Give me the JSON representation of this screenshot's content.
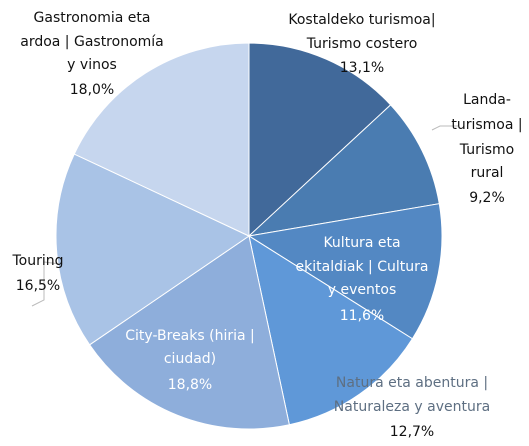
{
  "chart_data": {
    "type": "pie",
    "categories": [
      [
        "Kostaldeko turismoa|",
        "Turismo costero"
      ],
      [
        "Landa-",
        "turismoa |",
        "Turismo",
        "rural"
      ],
      [
        "Kultura eta",
        "ekitaldiak | Cultura",
        "y eventos"
      ],
      [
        "Natura eta abentura |",
        "Naturaleza y aventura"
      ],
      [
        "City-Breaks (hiria |",
        "ciudad)"
      ],
      [
        "Touring"
      ],
      [
        "Gastronomia eta",
        "ardoa | Gastronomía",
        "y vinos"
      ]
    ],
    "values": [
      13.1,
      9.2,
      11.6,
      12.7,
      18.8,
      16.5,
      18.0
    ],
    "value_labels": [
      "13,1%",
      "9,2%",
      "11,6%",
      "12,7%",
      "18,8%",
      "16,5%",
      "18,0%"
    ],
    "colors": [
      "#41699a",
      "#4a7cb1",
      "#5388c3",
      "#5f98d8",
      "#8eaedb",
      "#a9c3e6",
      "#c6d6ee"
    ]
  }
}
